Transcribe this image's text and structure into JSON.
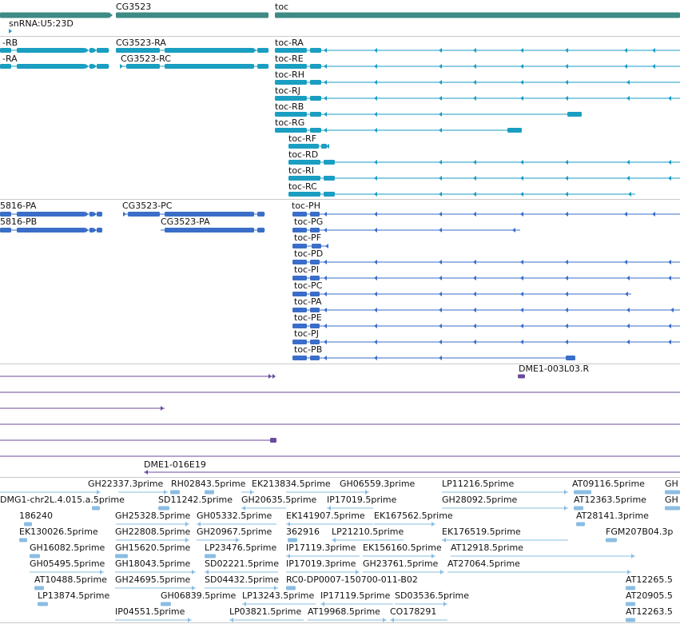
{
  "colors": {
    "gene": "#3d8a86",
    "transcript_a": "#1a9ec2",
    "transcript_b": "#3a6ec8",
    "match": "#6a4a9c",
    "est": "#8abde2",
    "separator": "#c9c9c9"
  },
  "genes": {
    "labels": [
      "CG3523",
      "toc",
      "snRNA:U5:23D"
    ]
  },
  "transcripts_a": {
    "labels": [
      "-RB",
      "-RA",
      "CG3523-RA",
      "CG3523-RC",
      "toc-RA",
      "toc-RE",
      "toc-RH",
      "toc-RJ",
      "toc-RB",
      "toc-RG",
      "toc-RF",
      "toc-RD",
      "toc-RI",
      "toc-RC"
    ]
  },
  "transcripts_b": {
    "labels": [
      "5816-PA",
      "5816-PB",
      "CG3523-PC",
      "CG3523-PA",
      "toc-PH",
      "toc-PG",
      "toc-PF",
      "toc-PD",
      "toc-PI",
      "toc-PC",
      "toc-PA",
      "toc-PE",
      "toc-PJ",
      "toc-PB"
    ]
  },
  "matches": {
    "labels": [
      "DME1-003L03.R",
      "DME1-016E19"
    ]
  },
  "ests": {
    "labels": [
      "GH22337.3prime",
      "RH02843.5prime",
      "EK213834.5prime",
      "GH06559.3prime",
      "LP11216.5prime",
      "AT09116.5prime",
      "GH",
      "DMG1-chr2L.4.015.a.5prime",
      "SD11242.5prime",
      "GH20635.5prime",
      "IP17019.5prime",
      "GH28092.5prime",
      "AT12363.5prime",
      "GH",
      "186240",
      "GH25328.5prime",
      "GH05332.5prime",
      "EK141907.5prime",
      "EK167562.5prime",
      "AT28141.3prime",
      "EK130026.5prime",
      "GH22808.5prime",
      "GH20967.5prime",
      "362916",
      "LP21210.5prime",
      "EK176519.5prime",
      "FGM207B04.3p",
      "GH16082.5prime",
      "GH15620.5prime",
      "LP23476.5prime",
      "IP17119.3prime",
      "EK156160.5prime",
      "AT12918.5prime",
      "GH05495.5prime",
      "GH18043.5prime",
      "SD02221.5prime",
      "IP17019.3prime",
      "GH23761.5prime",
      "AT27064.5prime",
      "AT10488.5prime",
      "GH24695.5prime",
      "SD04432.5prime",
      "RC0-DP0007-150700-011-B02",
      "AT12265.5",
      "LP13874.5prime",
      "GH06839.5prime",
      "LP13243.5prime",
      "IP17119.5prime",
      "SD03536.5prime",
      "AT20905.5",
      "IP04551.5prime",
      "LP03821.5prime",
      "AT19968.5prime",
      "CO178291",
      "AT12263.5"
    ]
  }
}
